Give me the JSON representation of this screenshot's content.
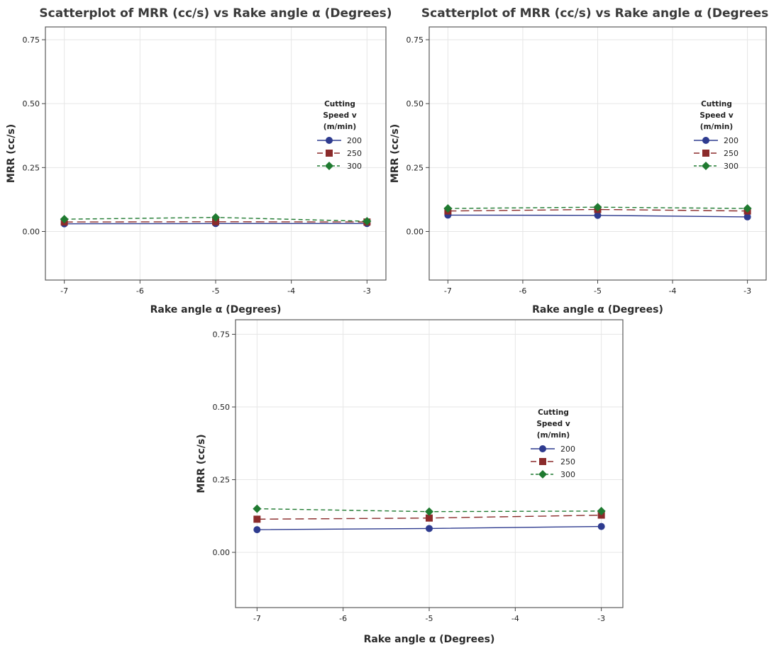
{
  "chart_data": [
    {
      "type": "line",
      "title": "Scatterplot of MRR (cc/s) vs Rake angle α (Degrees)",
      "xlabel": "Rake angle α (Degrees)",
      "ylabel": "MRR (cc/s)",
      "x": [
        -7,
        -5,
        -3
      ],
      "xticks": [
        "-7",
        "-6",
        "-5",
        "-4",
        "-3"
      ],
      "yticks": [
        "0.00",
        "0.25",
        "0.50",
        "0.75"
      ],
      "xlim": [
        -7.25,
        -2.75
      ],
      "ylim": [
        -0.19,
        0.8
      ],
      "grid": true,
      "legend": {
        "title": [
          "Cutting",
          "Speed v",
          "(m/min)"
        ],
        "position": "right"
      },
      "series": [
        {
          "name": "200",
          "values": [
            0.03,
            0.031,
            0.031
          ],
          "color": "#2e3b8f",
          "marker": "circle",
          "dash": "solid"
        },
        {
          "name": "250",
          "values": [
            0.037,
            0.038,
            0.037
          ],
          "color": "#8b2b2b",
          "marker": "square",
          "dash": "long-dash"
        },
        {
          "name": "300",
          "values": [
            0.048,
            0.055,
            0.04
          ],
          "color": "#1f7a30",
          "marker": "diamond",
          "dash": "short-dash"
        }
      ]
    },
    {
      "type": "line",
      "title": "Scatterplot of MRR (cc/s) vs Rake angle α (Degrees)",
      "xlabel": "Rake angle α (Degrees)",
      "ylabel": "MRR (cc/s)",
      "x": [
        -7,
        -5,
        -3
      ],
      "xticks": [
        "-7",
        "-6",
        "-5",
        "-4",
        "-3"
      ],
      "yticks": [
        "0.00",
        "0.25",
        "0.50",
        "0.75"
      ],
      "xlim": [
        -7.25,
        -2.75
      ],
      "ylim": [
        -0.19,
        0.8
      ],
      "grid": true,
      "legend": {
        "title": [
          "Cutting",
          "Speed v",
          "(m/min)"
        ],
        "position": "right"
      },
      "series": [
        {
          "name": "200",
          "values": [
            0.064,
            0.063,
            0.057
          ],
          "color": "#2e3b8f",
          "marker": "circle",
          "dash": "solid"
        },
        {
          "name": "250",
          "values": [
            0.08,
            0.086,
            0.08
          ],
          "color": "#8b2b2b",
          "marker": "square",
          "dash": "long-dash"
        },
        {
          "name": "300",
          "values": [
            0.09,
            0.095,
            0.09
          ],
          "color": "#1f7a30",
          "marker": "diamond",
          "dash": "short-dash"
        }
      ]
    },
    {
      "type": "line",
      "title": "",
      "xlabel": "Rake angle α (Degrees)",
      "ylabel": "MRR (cc/s)",
      "x": [
        -7,
        -5,
        -3
      ],
      "xticks": [
        "-7",
        "-6",
        "-5",
        "-4",
        "-3"
      ],
      "yticks": [
        "0.00",
        "0.25",
        "0.50",
        "0.75"
      ],
      "xlim": [
        -7.25,
        -2.75
      ],
      "ylim": [
        -0.19,
        0.8
      ],
      "grid": true,
      "legend": {
        "title": [
          "Cutting",
          "Speed v",
          "(m/min)"
        ],
        "position": "right"
      },
      "series": [
        {
          "name": "200",
          "values": [
            0.078,
            0.082,
            0.089
          ],
          "color": "#2e3b8f",
          "marker": "circle",
          "dash": "solid"
        },
        {
          "name": "250",
          "values": [
            0.114,
            0.118,
            0.128
          ],
          "color": "#8b2b2b",
          "marker": "square",
          "dash": "long-dash"
        },
        {
          "name": "300",
          "values": [
            0.15,
            0.14,
            0.142
          ],
          "color": "#1f7a30",
          "marker": "diamond",
          "dash": "short-dash"
        }
      ]
    }
  ]
}
